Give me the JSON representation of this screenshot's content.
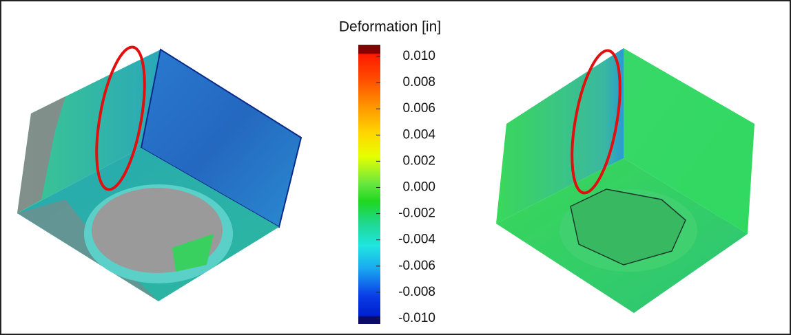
{
  "legend": {
    "title": "Deformation [in]",
    "ticks": [
      "0.010",
      "0.008",
      "0.006",
      "0.004",
      "0.002",
      "0.000",
      "-0.002",
      "-0.004",
      "-0.006",
      "-0.008",
      "-0.010"
    ]
  }
}
